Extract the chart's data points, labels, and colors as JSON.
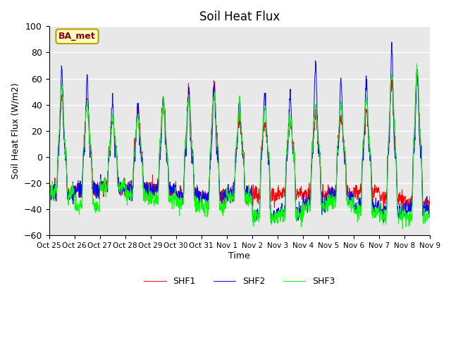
{
  "title": "Soil Heat Flux",
  "ylabel": "Soil Heat Flux (W/m2)",
  "xlabel": "Time",
  "ylim": [
    -60,
    100
  ],
  "yticks": [
    -60,
    -40,
    -20,
    0,
    20,
    40,
    60,
    80,
    100
  ],
  "xtick_labels": [
    "Oct 25",
    "Oct 26",
    "Oct 27",
    "Oct 28",
    "Oct 29",
    "Oct 30",
    "Oct 31",
    "Nov 1",
    "Nov 2",
    "Nov 3",
    "Nov 4",
    "Nov 5",
    "Nov 6",
    "Nov 7",
    "Nov 8",
    "Nov 9"
  ],
  "legend_labels": [
    "SHF1",
    "SHF2",
    "SHF3"
  ],
  "line_colors": [
    "red",
    "blue",
    "lime"
  ],
  "background_color": "#e8e8e8",
  "annotation_text": "BA_met",
  "annotation_color": "#8b0000",
  "annotation_bg": "#ffffc0",
  "annotation_border": "#b8a000",
  "n_days": 15,
  "pts_per_day": 96
}
